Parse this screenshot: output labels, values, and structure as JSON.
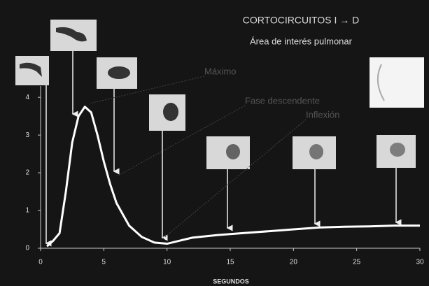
{
  "chart_data": {
    "type": "line",
    "title": "CORTOCIRCUITOS I → D",
    "subtitle": "Área de interés pulmonar",
    "x_label": "SEGUNDOS",
    "annotations": [
      "Máximo",
      "Fase descendente",
      "Inflexión"
    ],
    "x": [
      0.5,
      1,
      1.5,
      2,
      2.5,
      3,
      3.5,
      4,
      4.5,
      5,
      5.5,
      6,
      7,
      8,
      9,
      10,
      11,
      12,
      14,
      16,
      18,
      20,
      22,
      24,
      26,
      28,
      30
    ],
    "series": [
      {
        "color": "#ffffff",
        "values": [
          0.05,
          0.2,
          0.4,
          1.5,
          2.8,
          3.5,
          3.75,
          3.6,
          3.0,
          2.3,
          1.7,
          1.2,
          0.6,
          0.3,
          0.15,
          0.12,
          0.2,
          0.28,
          0.35,
          0.4,
          0.45,
          0.5,
          0.55,
          0.57,
          0.58,
          0.6,
          0.6
        ]
      }
    ],
    "xlim": [
      0,
      30
    ],
    "xticks": [
      0,
      5,
      10,
      15,
      20,
      25,
      30
    ],
    "ylim": [
      0,
      4.3
    ],
    "yticks": [
      0,
      1,
      2,
      3,
      4
    ]
  }
}
